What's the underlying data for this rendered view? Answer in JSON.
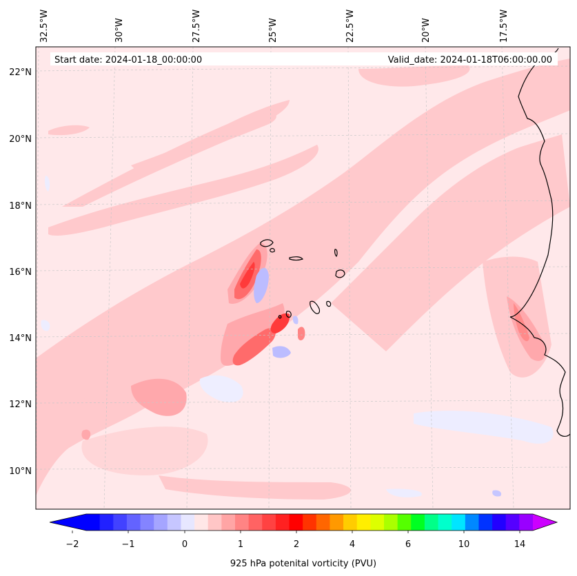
{
  "map": {
    "header": {
      "start_date": "Start date: 2024-01-18_00:00:00",
      "valid_date": "Valid_date: 2024-01-18T06:00:00.00"
    },
    "longitude_labels": [
      "32.5°W",
      "30°W",
      "27.5°W",
      "25°W",
      "22.5°W",
      "20°W",
      "17.5°W"
    ],
    "latitude_labels": [
      "22°N",
      "20°N",
      "18°N",
      "16°N",
      "14°N",
      "12°N",
      "10°N"
    ],
    "extent": {
      "lon_min": -32.7,
      "lon_max": -15.3,
      "lat_min": 8.9,
      "lat_max": 22.8
    },
    "gridlines": true,
    "coastline_color": "#000000",
    "background_field_color": "#ffe8ea"
  },
  "colorbar": {
    "label": "925 hPa potenital vorticity (PVU)",
    "tick_labels": [
      "−2",
      "−1",
      "0",
      "1",
      "2",
      "4",
      "6",
      "10",
      "14"
    ],
    "extend": "both",
    "colors": [
      "#0000ff",
      "#2121ff",
      "#4242ff",
      "#6363ff",
      "#8484ff",
      "#a5a5ff",
      "#c6c6ff",
      "#e7e7ff",
      "#ffe7e7",
      "#ffc6c6",
      "#ffa5a5",
      "#ff8484",
      "#ff6363",
      "#ff4242",
      "#ff2121",
      "#ff0000",
      "#ff3300",
      "#ff6600",
      "#ff9900",
      "#ffcc00",
      "#ffee00",
      "#ddff00",
      "#aaff00",
      "#55ff00",
      "#00ff22",
      "#00ff88",
      "#00ffcc",
      "#00e5ff",
      "#0088ff",
      "#0033ff",
      "#2200ff",
      "#5500ff",
      "#9900ff"
    ],
    "under_color": "#0000ff",
    "over_color": "#cc00ff"
  }
}
